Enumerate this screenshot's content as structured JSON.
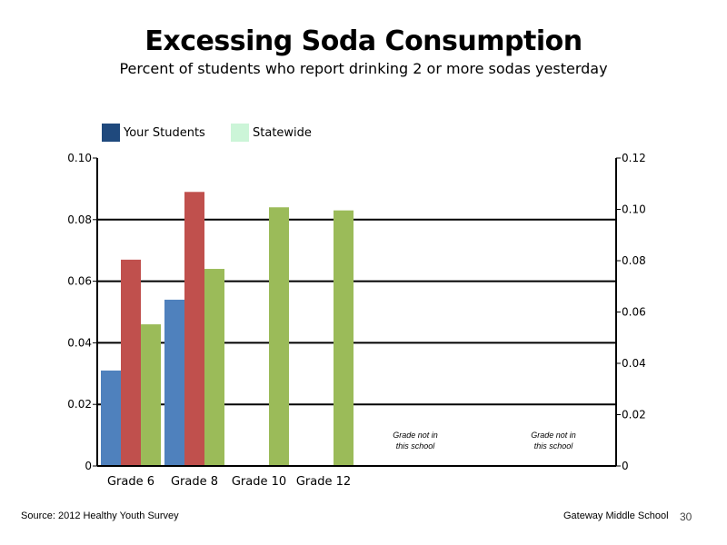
{
  "colors": {
    "your_students": "#4f81bd",
    "grade_red": "#c0504d",
    "statewide": "#9bbb59",
    "legend_your_students": "#1f497d",
    "legend_statewide": "#ccf5d8"
  },
  "footer": {
    "source": "Source: 2012 Healthy Youth Survey",
    "school": "Gateway Middle  School",
    "page": "30"
  },
  "legend": {
    "your_students": "Your Students",
    "statewide": "Statewide"
  },
  "chart_data": {
    "type": "bar",
    "title": "Excessing Soda Consumption",
    "subtitle": "Percent of students who report drinking 2 or more sodas yesterday",
    "categories": [
      "Grade 6",
      "Grade 8",
      "Grade 10",
      "Grade 12"
    ],
    "series": [
      {
        "name": "Your Students",
        "values": [
          0.031,
          0.054,
          null,
          null
        ]
      },
      {
        "values": [
          0.067,
          0.089,
          null,
          null
        ]
      },
      {
        "name": "Statewide",
        "values": [
          0.046,
          0.064,
          0.084,
          0.083
        ]
      }
    ],
    "ylim": [
      0,
      0.1
    ],
    "yticks": [
      "0",
      "0.02",
      "0.04",
      "0.06",
      "0.08",
      "0.10"
    ],
    "ylim_right": [
      0,
      0.12
    ],
    "yticks_right": [
      "0",
      "0.02",
      "0.04",
      "0.06",
      "0.08",
      "0.10",
      "0.12"
    ],
    "grid": true,
    "legend_position": "top-left",
    "annotations": [
      {
        "line1": "Grade not in",
        "line2": "this school"
      },
      {
        "line1": "Grade not in",
        "line2": "this school"
      }
    ]
  }
}
